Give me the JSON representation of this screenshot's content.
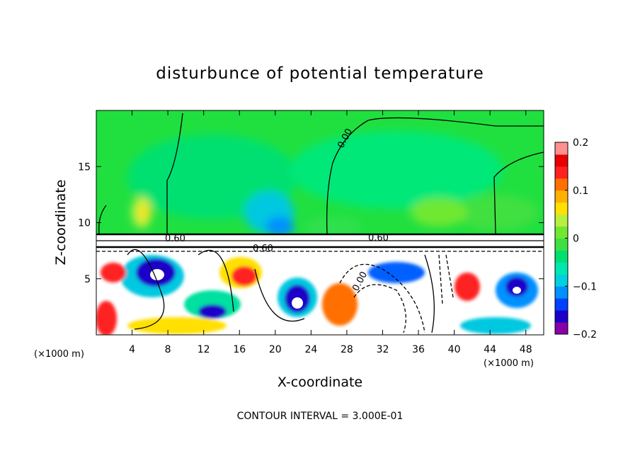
{
  "chart_data": {
    "type": "heatmap",
    "title": "disturbunce of potential temperature",
    "xlabel": "X-coordinate",
    "ylabel": "Z-coordinate",
    "x_unit": "(×1000 m)",
    "y_unit": "(×1000 m)",
    "xlim": [
      0,
      50
    ],
    "ylim": [
      0,
      20
    ],
    "x_ticks": [
      4,
      8,
      12,
      16,
      20,
      24,
      28,
      32,
      36,
      40,
      44,
      48
    ],
    "y_ticks": [
      5,
      10,
      15
    ],
    "colorbar": {
      "min": -0.2,
      "max": 0.2,
      "ticks": [
        0.2,
        0.1,
        0,
        -0.1,
        -0.2
      ],
      "tick_labels": [
        "0.2",
        "0.1",
        "0",
        "−0.1",
        "−0.2"
      ],
      "colors": [
        "#8800aa",
        "#1a00c8",
        "#0040ff",
        "#0090ff",
        "#00d0e0",
        "#00e8b0",
        "#00e070",
        "#40e040",
        "#70e830",
        "#b8f040",
        "#ffe000",
        "#ffb000",
        "#ff7000",
        "#ff2020",
        "#e80000",
        "#ff9090"
      ]
    },
    "contour_interval_text": "CONTOUR INTERVAL = 3.000E-01",
    "contour_labels": [
      "0.00",
      "0.60",
      "0.60",
      "0.60",
      "0.00"
    ]
  }
}
